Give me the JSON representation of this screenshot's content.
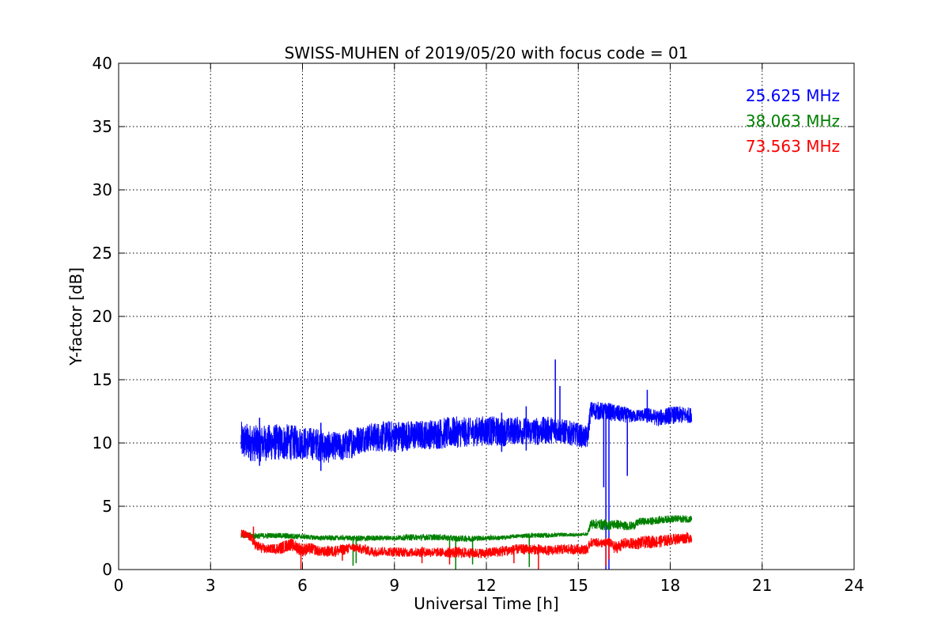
{
  "chart_data": {
    "type": "line",
    "title": "SWISS-MUHEN of 2019/05/20 with focus code = 01",
    "xlabel": "Universal Time [h]",
    "ylabel": "Y-factor [dB]",
    "xlim": [
      0,
      24
    ],
    "ylim": [
      0,
      40
    ],
    "xticks": [
      0,
      3,
      6,
      9,
      12,
      15,
      18,
      21,
      24
    ],
    "yticks": [
      0,
      5,
      10,
      15,
      20,
      25,
      30,
      35,
      40
    ],
    "grid": true,
    "legend_position": "top-right",
    "series": [
      {
        "name": "25.625 MHz",
        "color": "#0000ff",
        "band": true,
        "x": [
          4.0,
          4.5,
          5.0,
          5.5,
          6.0,
          6.5,
          6.8,
          7.0,
          7.3,
          7.6,
          8.0,
          8.5,
          9.0,
          9.5,
          10.0,
          10.5,
          11.0,
          11.5,
          12.0,
          12.5,
          13.0,
          13.5,
          14.0,
          14.3,
          14.5,
          15.0,
          15.3,
          15.4,
          15.6,
          15.8,
          15.9,
          16.0,
          16.1,
          16.3,
          16.6,
          16.8,
          17.0,
          17.3,
          17.6,
          18.0,
          18.3,
          18.7
        ],
        "y_low": [
          8.6,
          8.5,
          8.6,
          8.6,
          8.7,
          8.6,
          8.3,
          8.7,
          8.5,
          8.8,
          9.3,
          9.3,
          9.2,
          9.4,
          9.5,
          9.5,
          9.6,
          9.7,
          9.8,
          9.7,
          9.9,
          9.8,
          9.9,
          10.0,
          9.9,
          9.7,
          9.5,
          11.8,
          11.8,
          11.8,
          11.8,
          11.8,
          11.7,
          11.6,
          11.6,
          11.6,
          11.7,
          11.6,
          11.3,
          11.5,
          11.5,
          11.6
        ],
        "y_high": [
          11.7,
          11.4,
          11.5,
          11.5,
          11.3,
          11.2,
          10.9,
          10.9,
          10.8,
          11.3,
          11.5,
          11.7,
          11.8,
          11.8,
          11.8,
          12.0,
          12.1,
          12.0,
          12.2,
          12.0,
          12.1,
          12.0,
          12.1,
          12.1,
          11.9,
          11.6,
          11.3,
          13.3,
          13.3,
          13.2,
          13.2,
          13.2,
          13.1,
          13.0,
          12.8,
          12.6,
          12.7,
          12.8,
          12.6,
          12.9,
          12.9,
          12.8
        ],
        "spikes": [
          [
            4.6,
            8.2,
            12.0
          ],
          [
            6.6,
            7.8,
            11.6
          ],
          [
            12.5,
            9.3,
            12.4
          ],
          [
            13.3,
            9.4,
            12.9
          ],
          [
            14.25,
            10.3,
            16.6
          ],
          [
            14.4,
            10.3,
            14.5
          ],
          [
            15.9,
            0.0,
            13.0
          ],
          [
            16.0,
            0.0,
            13.0
          ],
          [
            15.83,
            6.5,
            13.0
          ],
          [
            16.6,
            7.4,
            12.2
          ],
          [
            17.25,
            11.6,
            14.2
          ]
        ]
      },
      {
        "name": "38.063 MHz",
        "color": "#008000",
        "band": true,
        "x": [
          4.0,
          4.5,
          5.0,
          5.5,
          6.0,
          6.5,
          7.0,
          7.5,
          8.0,
          8.5,
          9.0,
          9.5,
          10.0,
          10.5,
          11.0,
          11.5,
          12.0,
          12.5,
          13.0,
          13.5,
          14.0,
          14.5,
          15.0,
          15.3,
          15.4,
          15.6,
          15.8,
          16.0,
          16.2,
          16.5,
          16.8,
          17.0,
          17.3,
          17.6,
          18.0,
          18.3,
          18.7
        ],
        "y_low": [
          2.5,
          2.4,
          2.5,
          2.4,
          2.4,
          2.3,
          2.3,
          2.3,
          2.2,
          2.3,
          2.3,
          2.3,
          2.3,
          2.3,
          2.2,
          2.2,
          2.3,
          2.3,
          2.5,
          2.5,
          2.5,
          2.6,
          2.6,
          2.7,
          3.2,
          3.2,
          3.1,
          3.1,
          3.2,
          3.1,
          3.1,
          3.5,
          3.5,
          3.6,
          3.7,
          3.7,
          3.7
        ],
        "y_high": [
          3.0,
          2.9,
          2.9,
          2.9,
          2.8,
          2.7,
          2.7,
          2.7,
          2.7,
          2.7,
          2.7,
          2.8,
          2.8,
          2.8,
          2.7,
          2.7,
          2.7,
          2.7,
          2.8,
          2.9,
          2.9,
          2.9,
          2.9,
          2.9,
          4.0,
          4.0,
          4.0,
          3.9,
          4.0,
          3.8,
          3.8,
          4.1,
          4.1,
          4.2,
          4.3,
          4.3,
          4.3
        ],
        "spikes": [
          [
            7.65,
            0.3,
            2.4
          ],
          [
            7.75,
            0.5,
            2.4
          ],
          [
            10.8,
            0.9,
            2.4
          ],
          [
            11.0,
            0.0,
            2.4
          ],
          [
            11.55,
            0.4,
            2.4
          ],
          [
            13.4,
            0.2,
            2.6
          ]
        ]
      },
      {
        "name": "73.563 MHz",
        "color": "#ff0000",
        "band": true,
        "x": [
          4.0,
          4.3,
          4.5,
          4.8,
          5.0,
          5.3,
          5.6,
          6.0,
          6.3,
          6.6,
          7.0,
          7.3,
          7.6,
          8.0,
          8.3,
          8.6,
          9.0,
          9.5,
          10.0,
          10.5,
          11.0,
          11.5,
          12.0,
          12.5,
          13.0,
          13.5,
          14.0,
          14.5,
          15.0,
          15.3,
          15.4,
          15.6,
          15.8,
          16.0,
          16.2,
          16.5,
          16.8,
          17.0,
          17.3,
          17.6,
          18.0,
          18.3,
          18.7
        ],
        "y_low": [
          2.5,
          2.2,
          1.4,
          1.2,
          1.3,
          1.2,
          1.5,
          1.0,
          1.2,
          1.0,
          1.0,
          1.1,
          1.4,
          1.2,
          1.0,
          1.1,
          1.0,
          1.0,
          1.0,
          1.0,
          0.9,
          0.9,
          0.9,
          1.0,
          1.2,
          1.2,
          1.1,
          1.2,
          1.2,
          1.2,
          1.8,
          1.8,
          1.7,
          1.8,
          1.2,
          1.6,
          1.6,
          1.6,
          1.7,
          1.7,
          1.9,
          2.0,
          2.1
        ],
        "y_high": [
          3.2,
          2.9,
          2.3,
          2.0,
          2.0,
          2.2,
          2.5,
          2.1,
          2.1,
          1.8,
          1.9,
          2.0,
          2.1,
          2.0,
          1.8,
          1.8,
          1.8,
          1.7,
          1.8,
          1.7,
          1.8,
          1.7,
          1.7,
          1.9,
          2.0,
          2.0,
          1.9,
          2.0,
          2.0,
          2.0,
          2.5,
          2.5,
          2.4,
          2.5,
          2.2,
          2.5,
          2.5,
          2.6,
          2.7,
          2.7,
          2.8,
          2.9,
          3.0
        ],
        "spikes": [
          [
            4.4,
            2.0,
            3.4
          ],
          [
            5.95,
            0.0,
            1.9
          ],
          [
            7.3,
            0.7,
            1.9
          ],
          [
            9.9,
            0.5,
            1.8
          ],
          [
            10.8,
            0.4,
            1.8
          ],
          [
            12.9,
            0.5,
            1.9
          ],
          [
            13.7,
            0.0,
            2.0
          ],
          [
            15.9,
            0.3,
            2.5
          ],
          [
            16.0,
            0.8,
            2.5
          ]
        ]
      }
    ]
  }
}
